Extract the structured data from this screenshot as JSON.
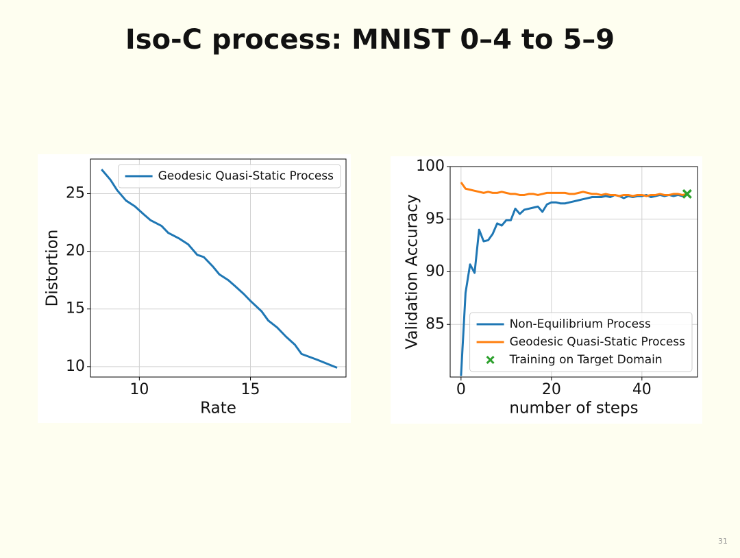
{
  "slide": {
    "title": "Iso-C process: MNIST 0–4 to 5–9",
    "page_number": 31
  },
  "chart_data": [
    {
      "type": "line",
      "xlabel": "Rate",
      "ylabel": "Distortion",
      "x": [
        8.3,
        8.7,
        9.0,
        9.4,
        9.8,
        10.2,
        10.5,
        11.0,
        11.3,
        11.8,
        12.2,
        12.6,
        12.9,
        13.3,
        13.6,
        14.0,
        14.3,
        14.7,
        15.0,
        15.5,
        15.8,
        16.2,
        16.6,
        17.0,
        17.3,
        18.0,
        18.9
      ],
      "series": [
        {
          "name": "Geodesic Quasi-Static Process",
          "color": "#1f77b4",
          "values": [
            27.1,
            26.2,
            25.3,
            24.4,
            23.9,
            23.2,
            22.7,
            22.2,
            21.6,
            21.1,
            20.6,
            19.7,
            19.5,
            18.7,
            18.0,
            17.5,
            17.0,
            16.3,
            15.7,
            14.8,
            14.0,
            13.4,
            12.6,
            11.9,
            11.1,
            10.6,
            9.9
          ]
        }
      ],
      "xlim": [
        7.8,
        19.3
      ],
      "ylim": [
        9.1,
        28
      ],
      "xticks": [
        10,
        15
      ],
      "yticks": [
        10,
        15,
        20,
        25
      ],
      "grid": true,
      "legend": "upper right"
    },
    {
      "type": "line",
      "xlabel": "number of steps",
      "ylabel": "Validation Accuracy",
      "x": [
        0,
        1,
        2,
        3,
        4,
        5,
        6,
        7,
        8,
        9,
        10,
        11,
        12,
        13,
        14,
        15,
        16,
        17,
        18,
        19,
        20,
        21,
        22,
        23,
        24,
        25,
        26,
        27,
        28,
        29,
        30,
        31,
        32,
        33,
        34,
        35,
        36,
        37,
        38,
        39,
        40,
        41,
        42,
        43,
        44,
        45,
        46,
        47,
        48,
        49,
        50
      ],
      "series": [
        {
          "name": "Non-Equilibrium Process",
          "color": "#1f77b4",
          "values": [
            80.1,
            88.0,
            90.7,
            89.9,
            94.0,
            92.9,
            93.0,
            93.6,
            94.6,
            94.4,
            94.9,
            94.9,
            96.0,
            95.5,
            95.9,
            96.0,
            96.1,
            96.2,
            95.7,
            96.4,
            96.6,
            96.6,
            96.5,
            96.5,
            96.6,
            96.7,
            96.8,
            96.9,
            97.0,
            97.1,
            97.1,
            97.1,
            97.2,
            97.1,
            97.3,
            97.2,
            97.0,
            97.2,
            97.1,
            97.2,
            97.2,
            97.3,
            97.1,
            97.2,
            97.3,
            97.2,
            97.3,
            97.2,
            97.3,
            97.2,
            97.4
          ]
        },
        {
          "name": "Geodesic Quasi-Static Process",
          "color": "#ff7f0e",
          "values": [
            98.5,
            97.9,
            97.8,
            97.7,
            97.6,
            97.5,
            97.6,
            97.5,
            97.5,
            97.6,
            97.5,
            97.4,
            97.4,
            97.3,
            97.3,
            97.4,
            97.4,
            97.3,
            97.4,
            97.5,
            97.5,
            97.5,
            97.5,
            97.5,
            97.4,
            97.4,
            97.5,
            97.6,
            97.5,
            97.4,
            97.4,
            97.3,
            97.4,
            97.3,
            97.3,
            97.2,
            97.3,
            97.3,
            97.2,
            97.3,
            97.3,
            97.2,
            97.3,
            97.3,
            97.4,
            97.3,
            97.3,
            97.4,
            97.4,
            97.3,
            97.4
          ]
        },
        {
          "name": "Training on Target Domain",
          "color": "#2ca02c",
          "marker": "X",
          "x": [
            50
          ],
          "values": [
            97.4
          ]
        }
      ],
      "xlim": [
        -2.4,
        52.3
      ],
      "ylim": [
        80,
        100
      ],
      "xticks": [
        0,
        20,
        40
      ],
      "yticks": [
        85,
        90,
        95,
        100
      ],
      "grid": true,
      "legend": "lower right"
    }
  ]
}
